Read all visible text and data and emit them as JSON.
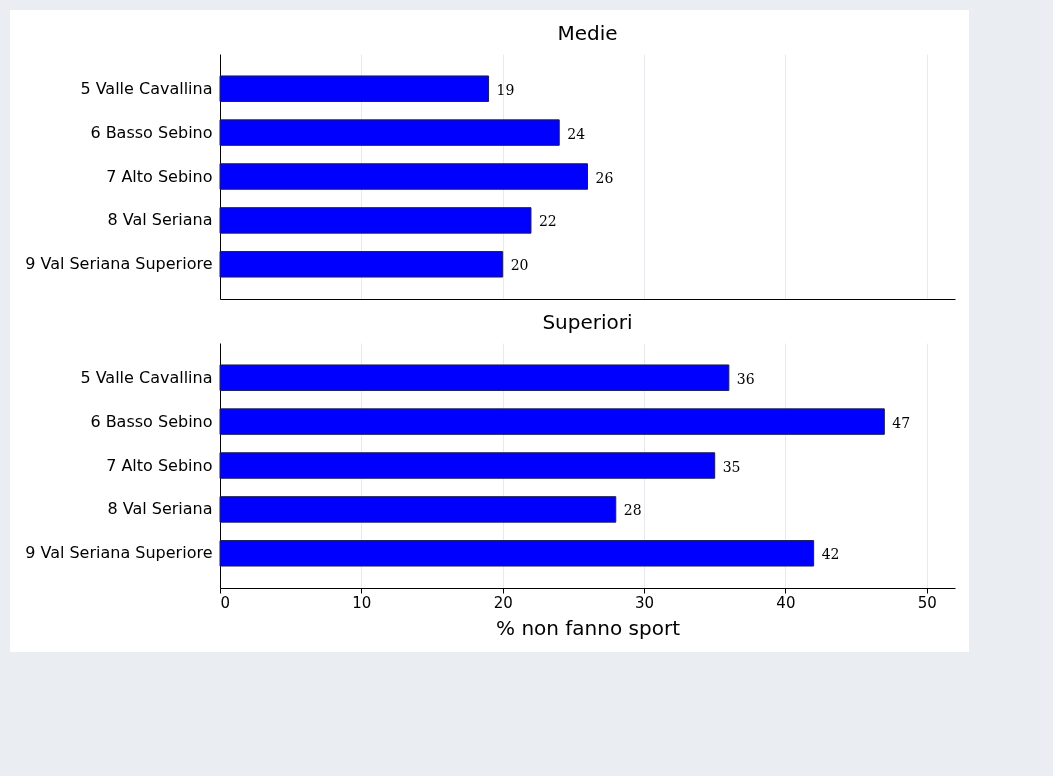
{
  "chart_data": [
    {
      "type": "bar",
      "orientation": "horizontal",
      "title": "Medie",
      "categories": [
        "5 Valle Cavallina",
        "6 Basso Sebino",
        "7 Alto Sebino",
        "8 Val Seriana",
        "9 Val Seriana Superiore"
      ],
      "values": [
        19,
        24,
        26,
        22,
        20
      ],
      "color": "#0000ff",
      "xlim": [
        0,
        52
      ],
      "xticks": [
        0,
        10,
        20,
        30,
        40,
        50
      ],
      "grid": "x",
      "data_labels": true,
      "tick_labels": "y"
    },
    {
      "type": "bar",
      "orientation": "horizontal",
      "title": "Superiori",
      "categories": [
        "5 Valle Cavallina",
        "6 Basso Sebino",
        "7 Alto Sebino",
        "8 Val Seriana",
        "9 Val Seriana Superiore"
      ],
      "values": [
        36,
        47,
        35,
        28,
        42
      ],
      "color": "#0000ff",
      "xlim": [
        0,
        52
      ],
      "xticks": [
        0,
        10,
        20,
        30,
        40,
        50
      ],
      "grid": "x",
      "data_labels": true,
      "xlabel": "% non fanno sport"
    }
  ]
}
